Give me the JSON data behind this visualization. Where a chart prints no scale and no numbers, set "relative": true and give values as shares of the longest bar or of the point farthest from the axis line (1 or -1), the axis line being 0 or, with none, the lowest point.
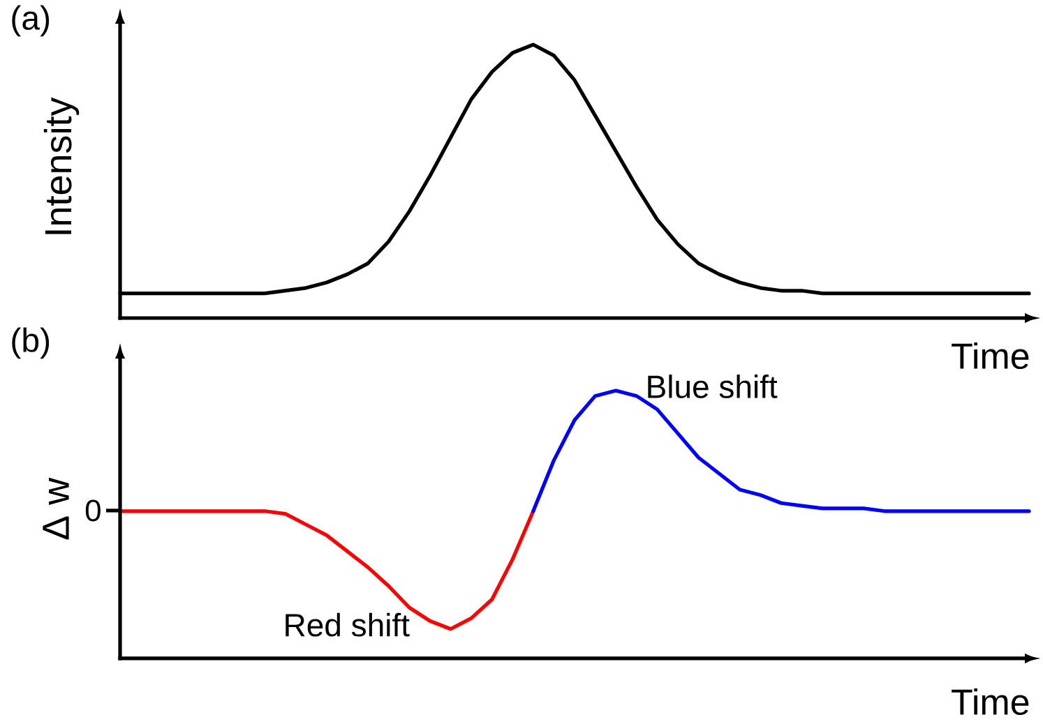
{
  "chart_data": [
    {
      "type": "line",
      "title": "(a)",
      "xlabel": "Time",
      "ylabel": "Intensity",
      "relative": true,
      "color": "#000000",
      "categories": [
        null,
        null,
        null,
        null,
        null,
        null,
        null,
        null,
        null,
        null,
        null,
        null,
        null,
        null,
        null,
        null,
        null,
        null,
        null,
        null,
        null,
        null,
        null,
        null,
        null,
        null,
        null,
        null,
        null,
        null,
        null,
        null,
        null,
        null,
        null,
        null,
        null,
        null,
        null,
        null,
        null,
        null,
        null,
        null,
        null
      ],
      "values": [
        0.09,
        0.09,
        0.09,
        0.09,
        0.09,
        0.09,
        0.09,
        0.09,
        0.1,
        0.11,
        0.13,
        0.16,
        0.2,
        0.28,
        0.39,
        0.52,
        0.66,
        0.8,
        0.9,
        0.97,
        1,
        0.96,
        0.87,
        0.74,
        0.61,
        0.48,
        0.36,
        0.27,
        0.2,
        0.16,
        0.13,
        0.11,
        0.1,
        0.1,
        0.09,
        0.09,
        0.09,
        0.09,
        0.09,
        0.09,
        0.09,
        0.09,
        0.09,
        0.09,
        0.09
      ]
    },
    {
      "type": "line",
      "title": "(b)",
      "xlabel": "Time",
      "ylabel": "Δ w",
      "relative": true,
      "categories": [
        null,
        null,
        null,
        null,
        null,
        null,
        null,
        null,
        null,
        null,
        null,
        null,
        null,
        null,
        null,
        null,
        null,
        null,
        null,
        null,
        null,
        null,
        null,
        null,
        null,
        null,
        null,
        null,
        null,
        null,
        null,
        null,
        null,
        null,
        null,
        null,
        null,
        null,
        null,
        null,
        null,
        null,
        null,
        null,
        null
      ],
      "series": [
        {
          "name": "Red shift",
          "color": "#ff0000",
          "values": [
            0.55,
            0.55,
            0.55,
            0.55,
            0.55,
            0.55,
            0.55,
            0.55,
            0.54,
            0.5,
            0.46,
            0.4,
            0.34,
            0.27,
            0.19,
            0.14,
            0.11,
            0.15,
            0.22,
            0.37,
            0.55,
            null,
            null,
            null,
            null,
            null,
            null,
            null,
            null,
            null,
            null,
            null,
            null,
            null,
            null,
            null,
            null,
            null,
            null,
            null,
            null,
            null,
            null,
            null,
            null
          ]
        },
        {
          "name": "Blue shift",
          "color": "#0000ff",
          "values": [
            null,
            null,
            null,
            null,
            null,
            null,
            null,
            null,
            null,
            null,
            null,
            null,
            null,
            null,
            null,
            null,
            null,
            null,
            null,
            null,
            0.55,
            0.74,
            0.89,
            0.98,
            1,
            0.98,
            0.93,
            0.84,
            0.75,
            0.69,
            0.63,
            0.61,
            0.58,
            0.57,
            0.56,
            0.56,
            0.56,
            0.55,
            0.55,
            0.55,
            0.55,
            0.55,
            0.55,
            0.55,
            0.55
          ]
        }
      ],
      "annotations": [
        "0"
      ]
    }
  ]
}
